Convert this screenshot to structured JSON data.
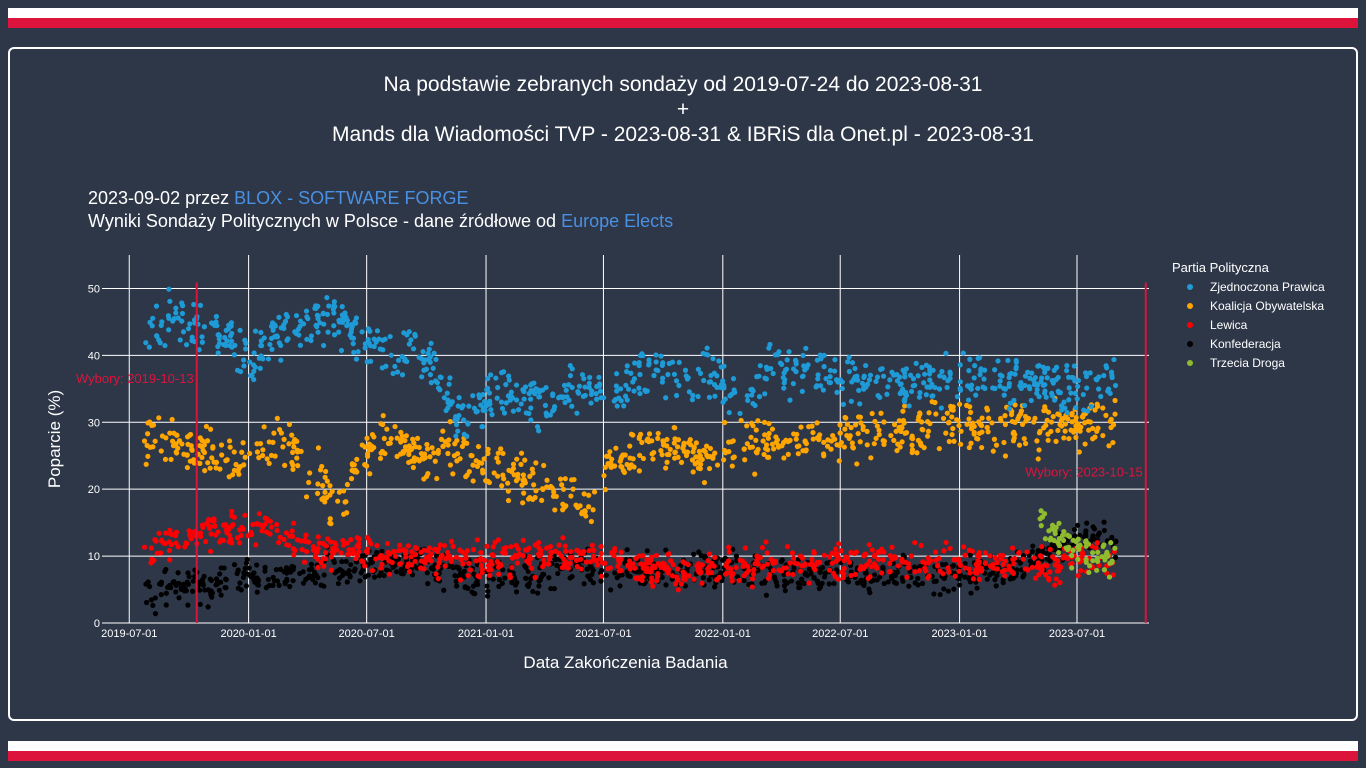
{
  "header": {
    "line1": "Na podstawie zebranych sondaży od 2019-07-24 do 2023-08-31",
    "line2": "+",
    "line3": "Mands dla Wiadomości TVP - 2023-08-31 & IBRiS dla Onet.pl - 2023-08-31"
  },
  "subtitle": {
    "date_by": "2023-09-02 przez",
    "author_link": "BLOX - SOFTWARE FORGE",
    "results_text": "Wyniki Sondaży Politycznych w Polsce - dane źródłowe od",
    "source_link": "Europe Elects"
  },
  "colors": {
    "background": "#2e3748",
    "stripe_white": "#ffffff",
    "stripe_red": "#dc143c",
    "election_line": "#dc143c",
    "link": "#4a90e2"
  },
  "chart_data": {
    "type": "scatter",
    "xlabel": "Data Zakończenia Badania",
    "ylabel": "Poparcie (%)",
    "ylim": [
      0,
      55
    ],
    "yticks": [
      0,
      10,
      20,
      30,
      40,
      50
    ],
    "xlim": [
      "2019-05-20",
      "2023-10-20"
    ],
    "xticks": [
      "2019-07-01",
      "2020-01-01",
      "2020-07-01",
      "2021-01-01",
      "2021-07-01",
      "2022-01-01",
      "2022-07-01",
      "2023-01-01",
      "2023-07-01"
    ],
    "grid": true,
    "legend": {
      "title": "Partia Polityczna",
      "position": "right"
    },
    "annotations": [
      {
        "date": "2019-10-13",
        "label": "Wybory: 2019-10-13",
        "y": 36.5
      },
      {
        "date": "2023-10-15",
        "label": "Wybory: 2023-10-15",
        "y": 22.5
      }
    ],
    "series": [
      {
        "name": "Zjednoczona Prawica",
        "color": "#1e9bd7",
        "points": [
          [
            "2019-07-24",
            45
          ],
          [
            "2019-08-15",
            44
          ],
          [
            "2019-09-10",
            46
          ],
          [
            "2019-10-13",
            44
          ],
          [
            "2019-11-15",
            43
          ],
          [
            "2019-12-15",
            41
          ],
          [
            "2020-01-15",
            40
          ],
          [
            "2020-02-15",
            43
          ],
          [
            "2020-03-15",
            45
          ],
          [
            "2020-04-15",
            45
          ],
          [
            "2020-05-15",
            46
          ],
          [
            "2020-06-15",
            43
          ],
          [
            "2020-07-15",
            41
          ],
          [
            "2020-08-15",
            40
          ],
          [
            "2020-09-15",
            41
          ],
          [
            "2020-10-15",
            37
          ],
          [
            "2020-11-15",
            31
          ],
          [
            "2020-12-15",
            32
          ],
          [
            "2021-01-15",
            35
          ],
          [
            "2021-02-15",
            34
          ],
          [
            "2021-03-15",
            34
          ],
          [
            "2021-04-15",
            33
          ],
          [
            "2021-05-15",
            35
          ],
          [
            "2021-06-15",
            35
          ],
          [
            "2021-07-15",
            35
          ],
          [
            "2021-08-15",
            37
          ],
          [
            "2021-09-15",
            38
          ],
          [
            "2021-10-15",
            37
          ],
          [
            "2021-11-15",
            36
          ],
          [
            "2021-12-15",
            37
          ],
          [
            "2022-01-15",
            35
          ],
          [
            "2022-02-15",
            35
          ],
          [
            "2022-03-15",
            38
          ],
          [
            "2022-04-15",
            38
          ],
          [
            "2022-05-15",
            38
          ],
          [
            "2022-06-15",
            37
          ],
          [
            "2022-07-15",
            37
          ],
          [
            "2022-08-15",
            36
          ],
          [
            "2022-09-15",
            35
          ],
          [
            "2022-10-15",
            36
          ],
          [
            "2022-11-15",
            36
          ],
          [
            "2022-12-15",
            36
          ],
          [
            "2023-01-15",
            36
          ],
          [
            "2023-02-15",
            36
          ],
          [
            "2023-03-15",
            36
          ],
          [
            "2023-04-15",
            36
          ],
          [
            "2023-05-15",
            36
          ],
          [
            "2023-06-15",
            35
          ],
          [
            "2023-07-15",
            35
          ],
          [
            "2023-08-15",
            36
          ],
          [
            "2023-08-31",
            37
          ]
        ]
      },
      {
        "name": "Koalicja Obywatelska",
        "color": "#ffa500",
        "points": [
          [
            "2019-07-24",
            28
          ],
          [
            "2019-08-15",
            28
          ],
          [
            "2019-09-10",
            27
          ],
          [
            "2019-10-13",
            26
          ],
          [
            "2019-11-15",
            25
          ],
          [
            "2019-12-15",
            24
          ],
          [
            "2020-01-15",
            26
          ],
          [
            "2020-02-15",
            27
          ],
          [
            "2020-03-15",
            25
          ],
          [
            "2020-04-15",
            22
          ],
          [
            "2020-05-15",
            17
          ],
          [
            "2020-06-15",
            24
          ],
          [
            "2020-07-15",
            28
          ],
          [
            "2020-08-15",
            27
          ],
          [
            "2020-09-15",
            25
          ],
          [
            "2020-10-15",
            25
          ],
          [
            "2020-11-15",
            26
          ],
          [
            "2020-12-15",
            24
          ],
          [
            "2021-01-15",
            23
          ],
          [
            "2021-02-15",
            22
          ],
          [
            "2021-03-15",
            21
          ],
          [
            "2021-04-15",
            20
          ],
          [
            "2021-05-15",
            19
          ],
          [
            "2021-06-15",
            16
          ],
          [
            "2021-07-15",
            24
          ],
          [
            "2021-08-15",
            26
          ],
          [
            "2021-09-15",
            26
          ],
          [
            "2021-10-15",
            26
          ],
          [
            "2021-11-15",
            25
          ],
          [
            "2021-12-15",
            25
          ],
          [
            "2022-01-15",
            26
          ],
          [
            "2022-02-15",
            27
          ],
          [
            "2022-03-15",
            27
          ],
          [
            "2022-04-15",
            27
          ],
          [
            "2022-05-15",
            27
          ],
          [
            "2022-06-15",
            27
          ],
          [
            "2022-07-15",
            28
          ],
          [
            "2022-08-15",
            28
          ],
          [
            "2022-09-15",
            29
          ],
          [
            "2022-10-15",
            29
          ],
          [
            "2022-11-15",
            29
          ],
          [
            "2022-12-15",
            30
          ],
          [
            "2023-01-15",
            29
          ],
          [
            "2023-02-15",
            29
          ],
          [
            "2023-03-15",
            29
          ],
          [
            "2023-04-15",
            29
          ],
          [
            "2023-05-15",
            29
          ],
          [
            "2023-06-15",
            30
          ],
          [
            "2023-07-15",
            30
          ],
          [
            "2023-08-15",
            30
          ],
          [
            "2023-08-31",
            31
          ]
        ]
      },
      {
        "name": "Lewica",
        "color": "#ff0000",
        "points": [
          [
            "2019-07-24",
            11
          ],
          [
            "2019-08-15",
            12
          ],
          [
            "2019-09-10",
            13
          ],
          [
            "2019-10-13",
            13
          ],
          [
            "2019-11-15",
            14
          ],
          [
            "2019-12-15",
            14
          ],
          [
            "2020-01-15",
            14
          ],
          [
            "2020-02-15",
            14
          ],
          [
            "2020-03-15",
            12
          ],
          [
            "2020-04-15",
            11
          ],
          [
            "2020-05-15",
            11
          ],
          [
            "2020-06-15",
            11
          ],
          [
            "2020-07-15",
            10
          ],
          [
            "2020-08-15",
            10
          ],
          [
            "2020-09-15",
            10
          ],
          [
            "2020-10-15",
            9
          ],
          [
            "2020-11-15",
            10
          ],
          [
            "2020-12-15",
            9
          ],
          [
            "2021-01-15",
            10
          ],
          [
            "2021-02-15",
            10
          ],
          [
            "2021-03-15",
            10
          ],
          [
            "2021-04-15",
            10
          ],
          [
            "2021-05-15",
            10
          ],
          [
            "2021-06-15",
            10
          ],
          [
            "2021-07-15",
            9
          ],
          [
            "2021-08-15",
            8
          ],
          [
            "2021-09-15",
            8
          ],
          [
            "2021-10-15",
            8
          ],
          [
            "2021-11-15",
            8
          ],
          [
            "2021-12-15",
            8
          ],
          [
            "2022-01-15",
            8
          ],
          [
            "2022-02-15",
            8
          ],
          [
            "2022-03-15",
            9
          ],
          [
            "2022-04-15",
            9
          ],
          [
            "2022-05-15",
            9
          ],
          [
            "2022-06-15",
            9
          ],
          [
            "2022-07-15",
            9
          ],
          [
            "2022-08-15",
            9
          ],
          [
            "2022-09-15",
            9
          ],
          [
            "2022-10-15",
            9
          ],
          [
            "2022-11-15",
            9
          ],
          [
            "2022-12-15",
            9
          ],
          [
            "2023-01-15",
            9
          ],
          [
            "2023-02-15",
            9
          ],
          [
            "2023-03-15",
            9
          ],
          [
            "2023-04-15",
            9
          ],
          [
            "2023-05-15",
            9
          ],
          [
            "2023-06-15",
            9
          ],
          [
            "2023-07-15",
            9
          ],
          [
            "2023-08-15",
            9
          ],
          [
            "2023-08-31",
            9
          ]
        ]
      },
      {
        "name": "Konfederacja",
        "color": "#000000",
        "points": [
          [
            "2019-07-24",
            4
          ],
          [
            "2019-08-15",
            4
          ],
          [
            "2019-09-10",
            5
          ],
          [
            "2019-10-13",
            5
          ],
          [
            "2019-11-15",
            6
          ],
          [
            "2019-12-15",
            7
          ],
          [
            "2020-01-15",
            7
          ],
          [
            "2020-02-15",
            7
          ],
          [
            "2020-03-15",
            7
          ],
          [
            "2020-04-15",
            8
          ],
          [
            "2020-05-15",
            8
          ],
          [
            "2020-06-15",
            8
          ],
          [
            "2020-07-15",
            9
          ],
          [
            "2020-08-15",
            9
          ],
          [
            "2020-09-15",
            9
          ],
          [
            "2020-10-15",
            8
          ],
          [
            "2020-11-15",
            8
          ],
          [
            "2020-12-15",
            7
          ],
          [
            "2021-01-15",
            7
          ],
          [
            "2021-02-15",
            7
          ],
          [
            "2021-03-15",
            7
          ],
          [
            "2021-04-15",
            8
          ],
          [
            "2021-05-15",
            8
          ],
          [
            "2021-06-15",
            8
          ],
          [
            "2021-07-15",
            8
          ],
          [
            "2021-08-15",
            8
          ],
          [
            "2021-09-15",
            8
          ],
          [
            "2021-10-15",
            8
          ],
          [
            "2021-11-15",
            8
          ],
          [
            "2021-12-15",
            8
          ],
          [
            "2022-01-15",
            8
          ],
          [
            "2022-02-15",
            8
          ],
          [
            "2022-03-15",
            7
          ],
          [
            "2022-04-15",
            7
          ],
          [
            "2022-05-15",
            7
          ],
          [
            "2022-06-15",
            7
          ],
          [
            "2022-07-15",
            7
          ],
          [
            "2022-08-15",
            7
          ],
          [
            "2022-09-15",
            7
          ],
          [
            "2022-10-15",
            7
          ],
          [
            "2022-11-15",
            7
          ],
          [
            "2022-12-15",
            7
          ],
          [
            "2023-01-15",
            7
          ],
          [
            "2023-02-15",
            8
          ],
          [
            "2023-03-15",
            8
          ],
          [
            "2023-04-15",
            9
          ],
          [
            "2023-05-15",
            10
          ],
          [
            "2023-06-15",
            12
          ],
          [
            "2023-07-15",
            13
          ],
          [
            "2023-08-15",
            12
          ],
          [
            "2023-08-31",
            11
          ]
        ]
      },
      {
        "name": "Trzecia Droga",
        "color": "#8fbc2f",
        "points": [
          [
            "2023-05-05",
            15
          ],
          [
            "2023-05-20",
            14
          ],
          [
            "2023-06-01",
            13
          ],
          [
            "2023-06-15",
            12
          ],
          [
            "2023-07-01",
            11
          ],
          [
            "2023-07-15",
            10
          ],
          [
            "2023-07-25",
            9
          ],
          [
            "2023-08-05",
            10
          ],
          [
            "2023-08-15",
            10
          ],
          [
            "2023-08-25",
            10
          ],
          [
            "2023-08-31",
            9
          ]
        ]
      }
    ]
  }
}
